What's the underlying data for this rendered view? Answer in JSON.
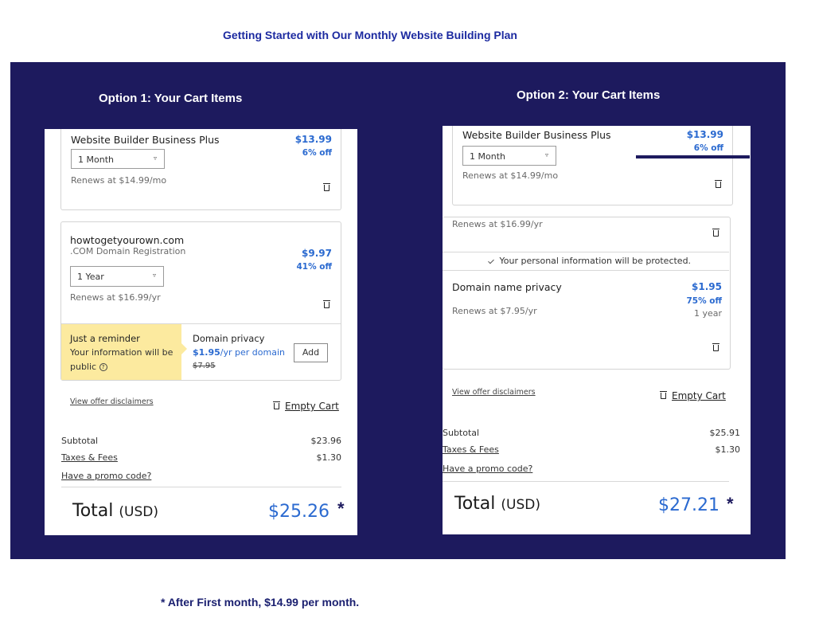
{
  "heading": "Getting Started with Our Monthly Website Building Plan",
  "footnote": "* After First month, $14.99 per month.",
  "colors": {
    "banner": "#1d1a5e",
    "price_blue": "#2b6ad0",
    "reminder_yellow": "#fcea9f",
    "heading_blue": "#1c2aa0"
  },
  "option1": {
    "title": "Option 1:  Your Cart Items",
    "item1": {
      "name": "Website Builder Business Plus",
      "price": "$13.99",
      "discount": "6% off",
      "term": "1 Month",
      "renews": "Renews at $14.99/mo"
    },
    "item2": {
      "domain": "howtogetyourown.com",
      "type": ".COM Domain Registration",
      "price": "$9.97",
      "discount": "41% off",
      "term": "1 Year",
      "renews": "Renews at $16.99/yr"
    },
    "reminder": {
      "title": "Just a reminder",
      "line1": "Your information will be",
      "line2": "public"
    },
    "privacy_offer": {
      "title": "Domain privacy",
      "price": "$1.95",
      "per": "/yr per domain",
      "old_price": "$7.95",
      "add_label": "Add"
    },
    "disclaimers": "View offer disclaimers",
    "empty_cart": "Empty Cart",
    "subtotal_label": "Subtotal",
    "subtotal": "$23.96",
    "taxes_label": "Taxes & Fees",
    "taxes": "$1.30",
    "promo": "Have a promo code?",
    "total_label": "Total",
    "total_unit": "(USD)",
    "total": "$25.26",
    "star": "*"
  },
  "option2": {
    "title": "Option 2:  Your Cart Items",
    "item1": {
      "name": "Website Builder Business Plus",
      "price": "$13.99",
      "discount": "6% off",
      "term": "1 Month",
      "renews": "Renews at $14.99/mo"
    },
    "item2_renews": "Renews at $16.99/yr",
    "protected": "Your personal information will be protected.",
    "privacy": {
      "name": "Domain name privacy",
      "price": "$1.95",
      "discount": "75% off",
      "term": "1 year",
      "renews": "Renews at $7.95/yr"
    },
    "disclaimers": "View offer disclaimers",
    "empty_cart": "Empty Cart",
    "subtotal_label": "Subtotal",
    "subtotal": "$25.91",
    "taxes_label": "Taxes & Fees",
    "taxes": "$1.30",
    "promo": "Have a promo code?",
    "total_label": "Total",
    "total_unit": "(USD)",
    "total": "$27.21",
    "star": "*"
  }
}
